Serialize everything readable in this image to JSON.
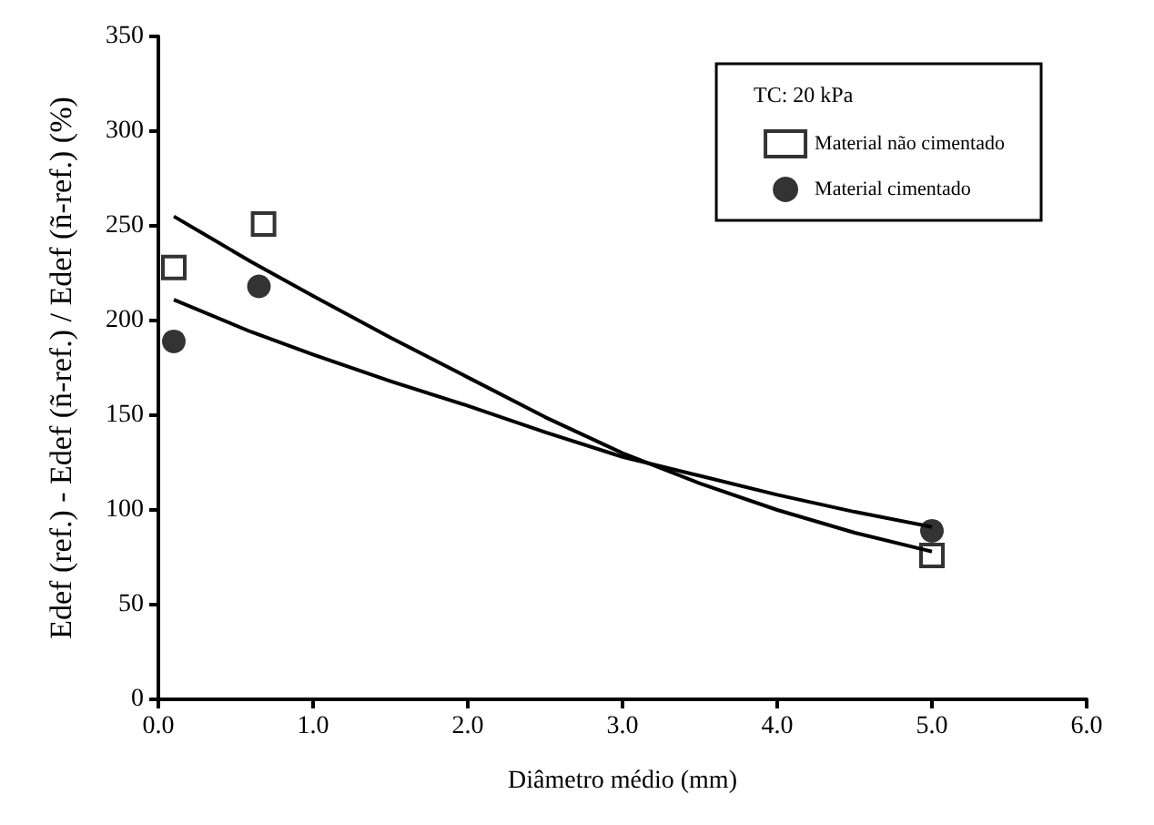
{
  "chart_data": {
    "type": "scatter",
    "xlabel": "Diâmetro médio (mm)",
    "ylabel": "Edef (ref.) - Edef (ñ-ref.) / Edef (ñ-ref.) (%)",
    "legend_title": "TC: 20 kPa",
    "legend": "top right",
    "grid": false,
    "xlim": [
      0,
      6
    ],
    "xticks": [
      {
        "value": 0,
        "label": "0.0"
      },
      {
        "value": 1,
        "label": "1.0"
      },
      {
        "value": 2,
        "label": "2.0"
      },
      {
        "value": 3,
        "label": "3.0"
      },
      {
        "value": 4,
        "label": "4.0"
      },
      {
        "value": 5,
        "label": "5.0"
      },
      {
        "value": 6,
        "label": "6.0"
      }
    ],
    "ylim": [
      0,
      350
    ],
    "yticks": [
      0,
      50,
      100,
      150,
      200,
      250,
      300,
      350
    ],
    "series": [
      {
        "name": "Material não cimentado",
        "marker": "square",
        "color": "#000000",
        "x": [
          0.1,
          0.68,
          5.0
        ],
        "values": [
          228,
          251,
          76
        ]
      },
      {
        "name": "Material cimentado",
        "marker": "circle",
        "color": "#000000",
        "x": [
          0.1,
          0.65,
          5.0
        ],
        "values": [
          189,
          218,
          89
        ]
      },
      {
        "type": "line",
        "marker": "none",
        "color": "#000000",
        "x": [
          0.1,
          0.6,
          1,
          1.5,
          2,
          2.5,
          3,
          3.5,
          4,
          4.5,
          5
        ],
        "values": [
          255,
          231,
          213,
          191,
          170,
          149,
          130,
          114,
          100,
          88,
          78
        ]
      },
      {
        "type": "line",
        "marker": "none",
        "color": "#000000",
        "x": [
          0.1,
          0.6,
          1,
          1.5,
          2,
          2.5,
          3,
          3.5,
          4,
          4.5,
          5
        ],
        "values": [
          211,
          194,
          182,
          168,
          155,
          141,
          128,
          118,
          108,
          99,
          91
        ]
      }
    ]
  }
}
